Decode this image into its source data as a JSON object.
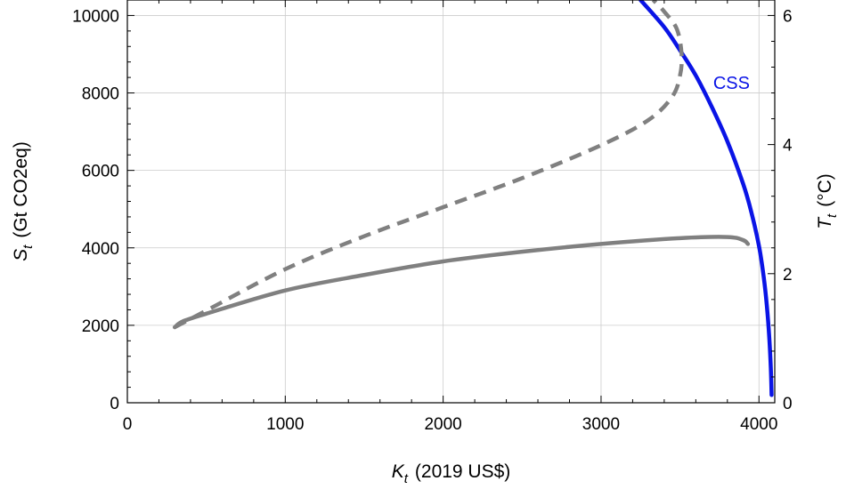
{
  "chart_data": {
    "type": "line",
    "xlabel": {
      "symbol": "K",
      "sub": "t",
      "unit": "(2019 US$)"
    },
    "ylabel_left": {
      "symbol": "S",
      "sub": "t",
      "unit": "(Gt CO2eq)"
    },
    "ylabel_right": {
      "symbol": "T",
      "sub": "t",
      "unit": "(°C)"
    },
    "xlim": [
      0,
      4100
    ],
    "ylim_left": [
      0,
      10400
    ],
    "ylim_right": [
      0,
      6.24
    ],
    "x_ticks": [
      0,
      1000,
      2000,
      3000,
      4000
    ],
    "y_ticks_left": [
      0,
      2000,
      4000,
      6000,
      8000,
      10000
    ],
    "y_ticks_right": [
      0,
      2,
      4,
      6
    ],
    "grid": true,
    "colors": {
      "css": "#0a14e6",
      "path": "#808080",
      "grid": "#cccccc"
    },
    "series": [
      {
        "name": "CSS",
        "style": "solid",
        "points": [
          [
            3250,
            10400
          ],
          [
            3400,
            9700
          ],
          [
            3500,
            9100
          ],
          [
            3600,
            8450
          ],
          [
            3700,
            7650
          ],
          [
            3800,
            6750
          ],
          [
            3900,
            5650
          ],
          [
            3950,
            4950
          ],
          [
            4000,
            4050
          ],
          [
            4030,
            3250
          ],
          [
            4050,
            2500
          ],
          [
            4065,
            1700
          ],
          [
            4075,
            900
          ],
          [
            4080,
            200
          ]
        ]
      },
      {
        "style": "solid",
        "points": [
          [
            300,
            1950
          ],
          [
            350,
            2100
          ],
          [
            500,
            2300
          ],
          [
            1000,
            2900
          ],
          [
            1500,
            3300
          ],
          [
            2000,
            3650
          ],
          [
            2500,
            3900
          ],
          [
            3000,
            4100
          ],
          [
            3500,
            4250
          ],
          [
            3800,
            4280
          ],
          [
            3900,
            4200
          ],
          [
            3930,
            4100
          ]
        ]
      },
      {
        "style": "dashed",
        "points": [
          [
            300,
            1950
          ],
          [
            500,
            2380
          ],
          [
            1000,
            3450
          ],
          [
            1500,
            4300
          ],
          [
            2000,
            5050
          ],
          [
            2500,
            5800
          ],
          [
            3000,
            6650
          ],
          [
            3300,
            7300
          ],
          [
            3450,
            7900
          ],
          [
            3500,
            8450
          ],
          [
            3510,
            9000
          ],
          [
            3480,
            9650
          ],
          [
            3400,
            10100
          ],
          [
            3330,
            10400
          ]
        ]
      }
    ],
    "annotations": [
      {
        "text": "CSS",
        "x": 3710,
        "y": 8100
      }
    ]
  }
}
